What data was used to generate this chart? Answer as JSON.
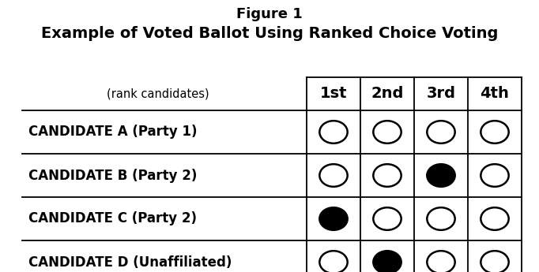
{
  "title_line1": "Figure 1",
  "title_line2": "Example of Voted Ballot Using Ranked Choice Voting",
  "rank_label": "(rank candidates)",
  "columns": [
    "1st",
    "2nd",
    "3rd",
    "4th"
  ],
  "candidates": [
    "CANDIDATE A (Party 1)",
    "CANDIDATE B (Party 2)",
    "CANDIDATE C (Party 2)",
    "CANDIDATE D (Unaffiliated)"
  ],
  "filled": [
    [
      false,
      false,
      false,
      false
    ],
    [
      false,
      false,
      true,
      false
    ],
    [
      true,
      false,
      false,
      false
    ],
    [
      false,
      true,
      false,
      false
    ]
  ],
  "bg_color": "#ffffff",
  "text_color": "#000000",
  "line_color": "#000000",
  "title1_fontsize": 13,
  "title2_fontsize": 14,
  "rank_label_fontsize": 10.5,
  "header_fontsize": 14,
  "candidate_fontsize": 12,
  "oval_lw": 1.8,
  "table_line_lw": 1.3
}
